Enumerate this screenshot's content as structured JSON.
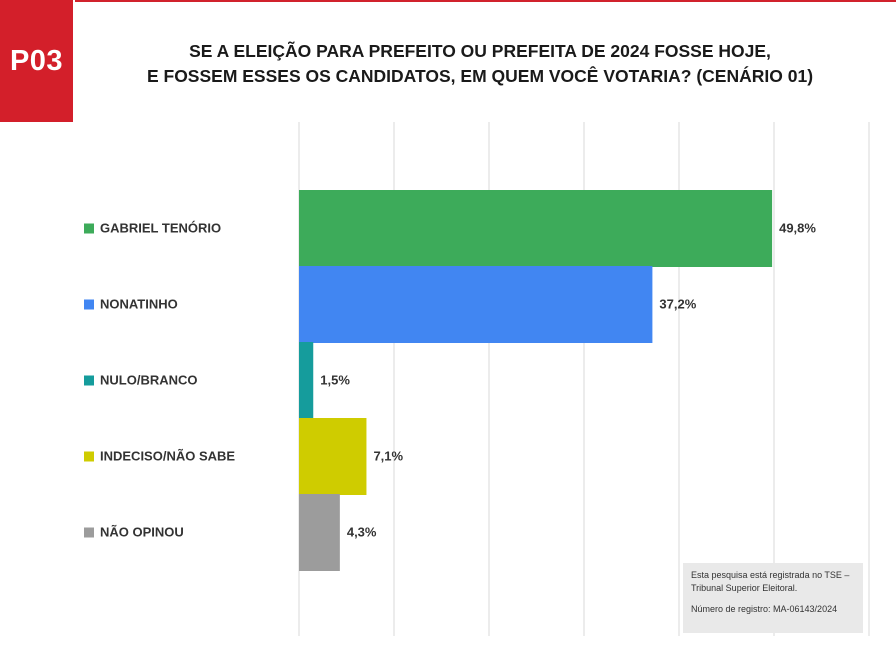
{
  "badge": {
    "label": "P03"
  },
  "title": {
    "line1": "SE A ELEIÇÃO PARA PREFEITO OU PREFEITA DE 2024 FOSSE HOJE,",
    "line2": "E FOSSEM ESSES OS CANDIDATOS, EM QUEM VOCÊ VOTARIA? (CENÁRIO 01)"
  },
  "chart_data": {
    "type": "bar",
    "orientation": "horizontal",
    "title": "SE A ELEIÇÃO PARA PREFEITO OU PREFEITA DE 2024 FOSSE HOJE, E FOSSEM ESSES OS CANDIDATOS, EM QUEM VOCÊ VOTARIA? (CENÁRIO 01)",
    "categories": [
      "GABRIEL TENÓRIO",
      "NONATINHO",
      "NULO/BRANCO",
      "INDECISO/NÃO SABE",
      "NÃO OPINOU"
    ],
    "values": [
      49.8,
      37.2,
      1.5,
      7.1,
      4.3
    ],
    "value_labels": [
      "49,8%",
      "37,2%",
      "1,5%",
      "7,1%",
      "4,3%"
    ],
    "colors": [
      "#3dab5a",
      "#4186f2",
      "#159c9c",
      "#cfcc00",
      "#9c9c9c"
    ],
    "xlabel": "",
    "ylabel": "",
    "xlim": [
      0,
      60
    ],
    "grid": true,
    "legend": "left"
  },
  "note": {
    "line1": "Esta pesquisa está registrada no TSE –",
    "line2": "Tribunal Superior Eleitoral.",
    "registro": "Número de registro: MA-06143/2024"
  }
}
